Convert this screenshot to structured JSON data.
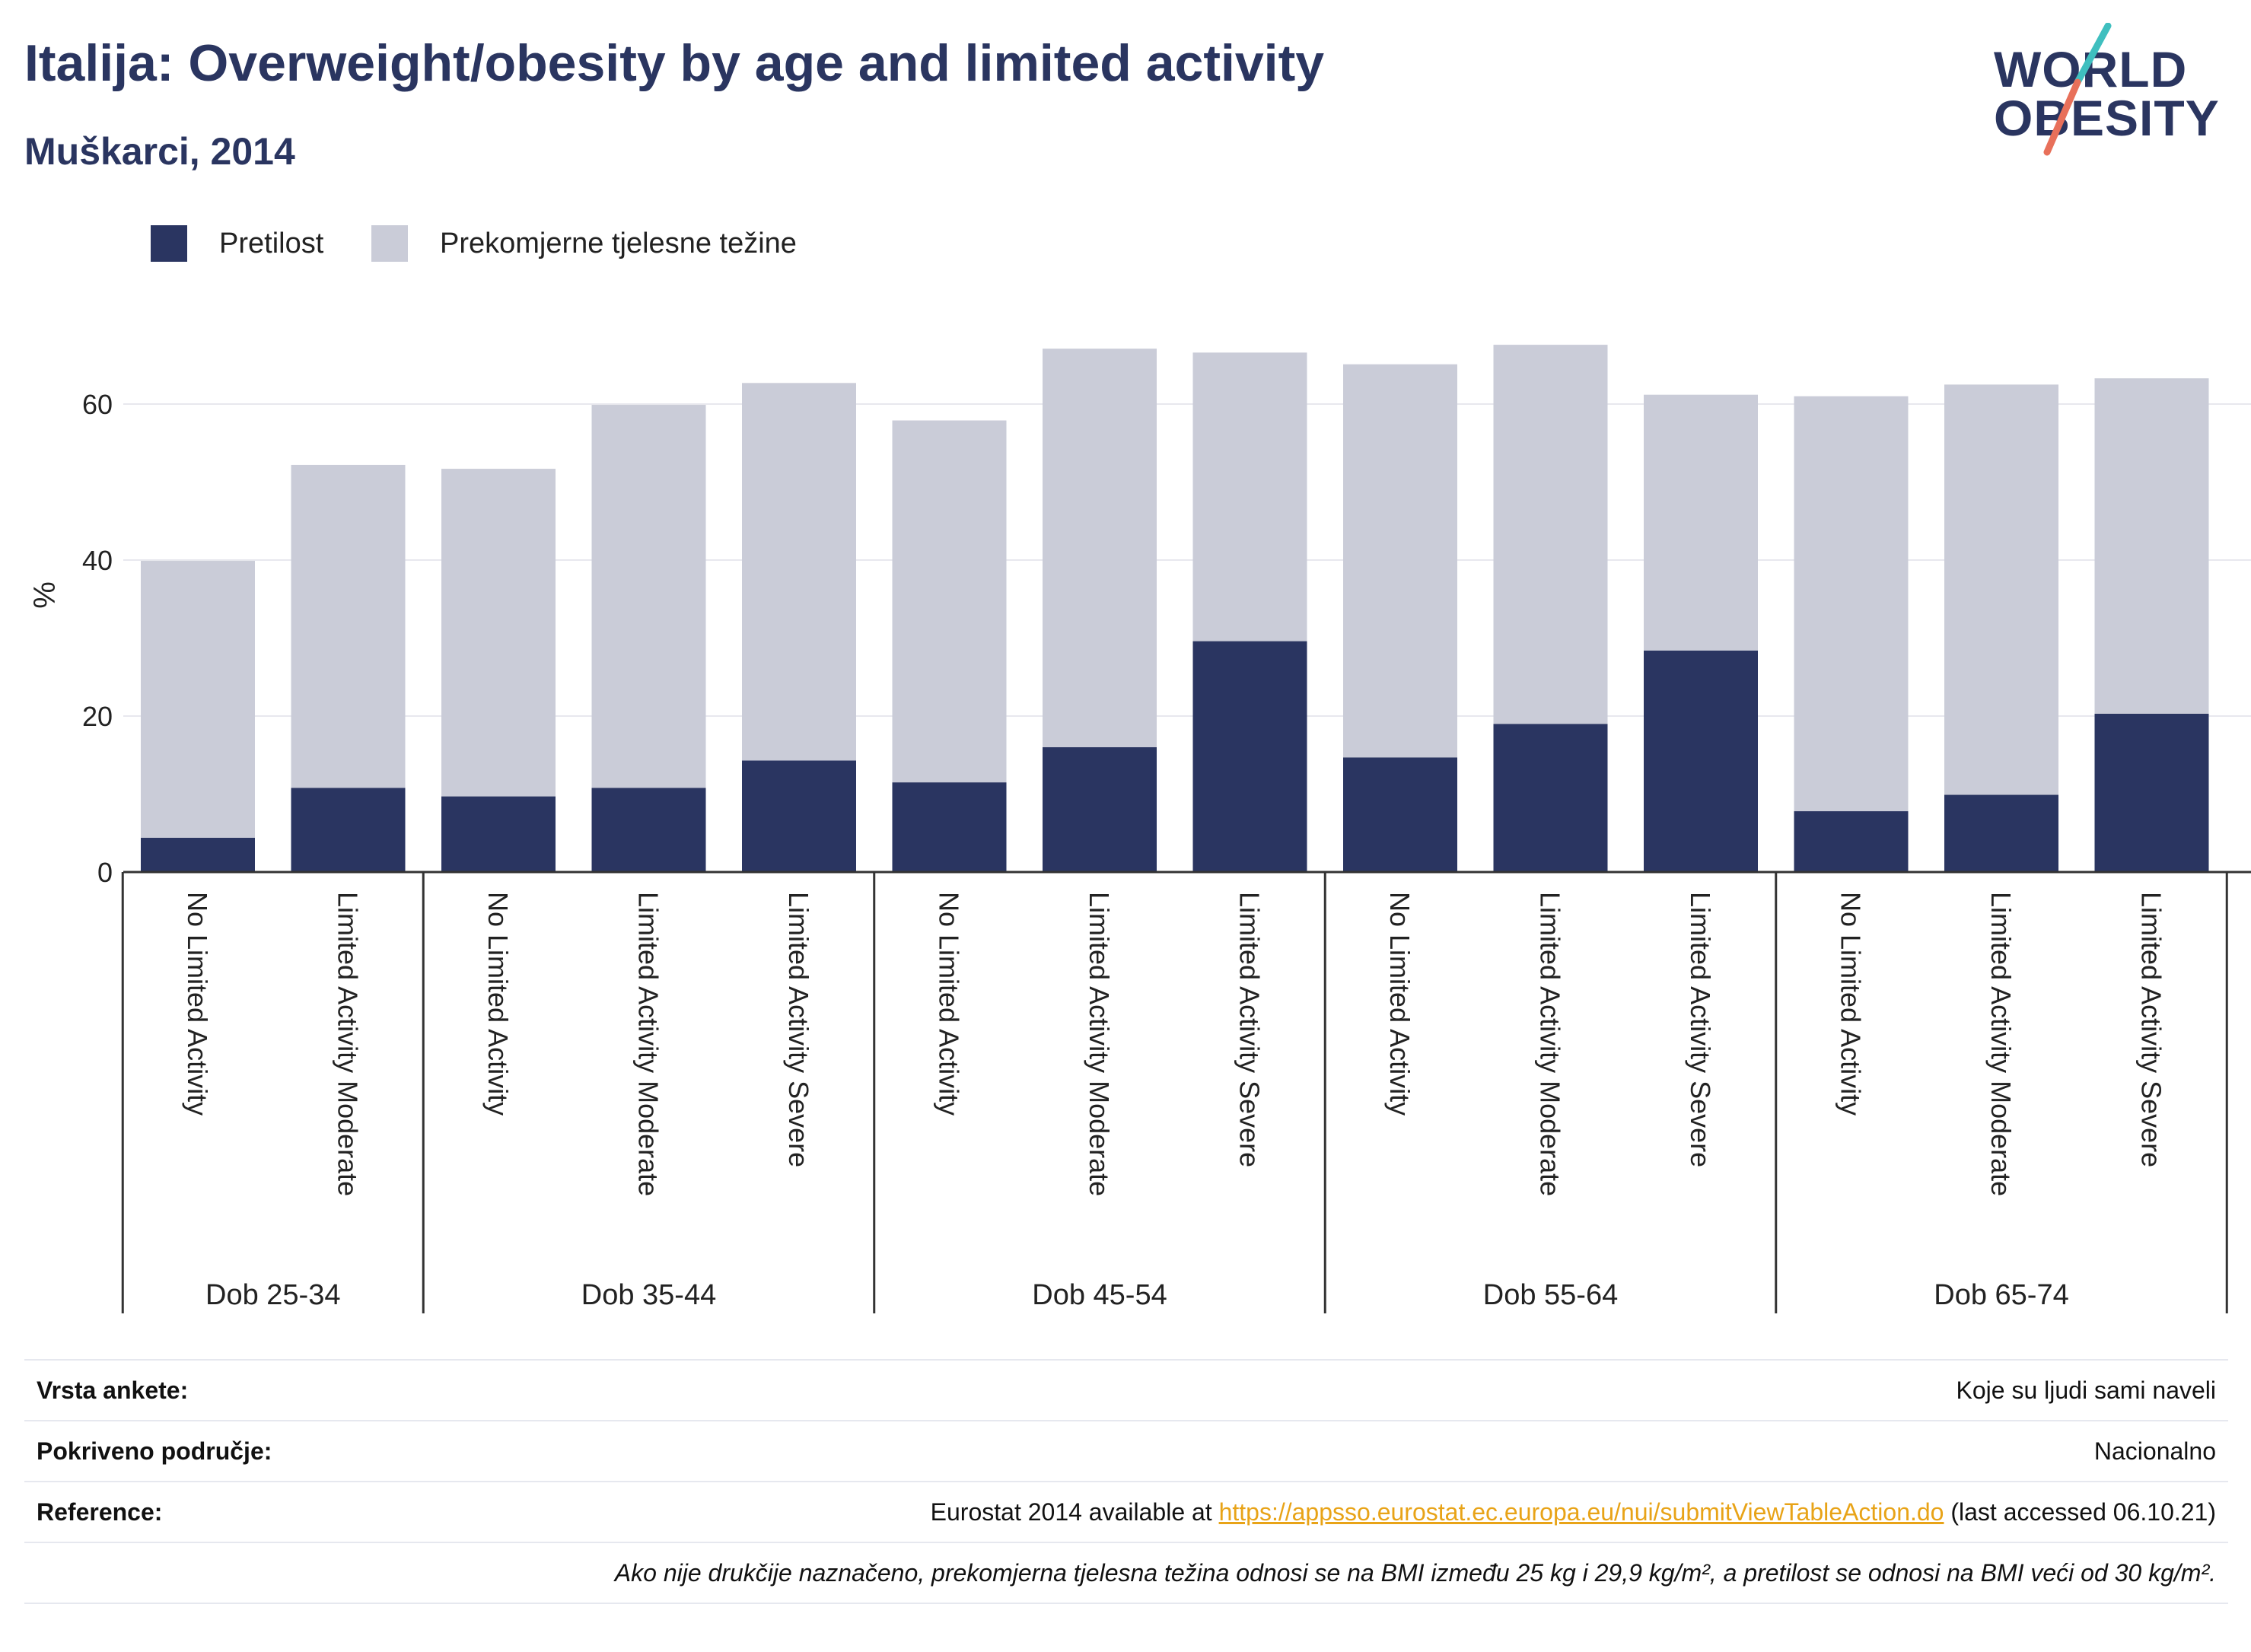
{
  "header": {
    "title": "Italija: Overweight/obesity by age and limited activity",
    "subtitle": "Muškarci, 2014"
  },
  "logo": {
    "line1": "WORLD",
    "line2": "OBESITY",
    "colors": {
      "text": "#2a3560",
      "slash_top": "#3fbfbf",
      "slash_bottom": "#e8705a"
    }
  },
  "colors": {
    "obesity": "#2a3561",
    "overweight": "#caccd8",
    "grid": "#e8e8ee",
    "axis": "#333333"
  },
  "chart_data": {
    "type": "bar",
    "stacked": true,
    "ylabel": "%",
    "ylim": [
      0,
      70
    ],
    "yticks": [
      0,
      20,
      40,
      60
    ],
    "grid": true,
    "legend_position": "top-left",
    "groups": [
      {
        "label": "Dob 25-34",
        "categories": [
          "No Limited Activity",
          "Limited Activity Moderate"
        ]
      },
      {
        "label": "Dob 35-44",
        "categories": [
          "No Limited Activity",
          "Limited Activity Moderate",
          "Limited Activity Severe"
        ]
      },
      {
        "label": "Dob 45-54",
        "categories": [
          "No Limited Activity",
          "Limited Activity Moderate",
          "Limited Activity Severe"
        ]
      },
      {
        "label": "Dob 55-64",
        "categories": [
          "No Limited Activity",
          "Limited Activity Moderate",
          "Limited Activity Severe"
        ]
      },
      {
        "label": "Dob 65-74",
        "categories": [
          "No Limited Activity",
          "Limited Activity Moderate",
          "Limited Activity Severe"
        ]
      }
    ],
    "series": [
      {
        "name": "Pretilost",
        "values": [
          4.4,
          10.8,
          9.7,
          10.8,
          14.3,
          11.5,
          16.0,
          29.6,
          14.7,
          19.0,
          28.4,
          7.8,
          9.9,
          20.3
        ]
      },
      {
        "name": "Prekomjerne tjelesne težine",
        "values": [
          35.5,
          41.4,
          42.0,
          49.1,
          48.4,
          46.4,
          51.1,
          37.0,
          50.4,
          48.6,
          32.8,
          53.2,
          52.6,
          43.0
        ]
      }
    ]
  },
  "info": {
    "rows": [
      {
        "key": "Vrsta ankete:",
        "value": "Koje su ljudi sami naveli"
      },
      {
        "key": "Pokriveno područje:",
        "value": "Nacionalno"
      }
    ],
    "reference": {
      "key": "Reference:",
      "prefix": "Eurostat 2014 available at ",
      "link": "https://appsso.eurostat.ec.europa.eu/nui/submitViewTableAction.do",
      "suffix": " (last accessed 06.10.21)"
    },
    "note": "Ako nije drukčije naznačeno, prekomjerna tjelesna težina odnosi se na BMI između 25 kg i 29,9 kg/m², a pretilost se odnosi na BMI veći od 30 kg/m²."
  }
}
